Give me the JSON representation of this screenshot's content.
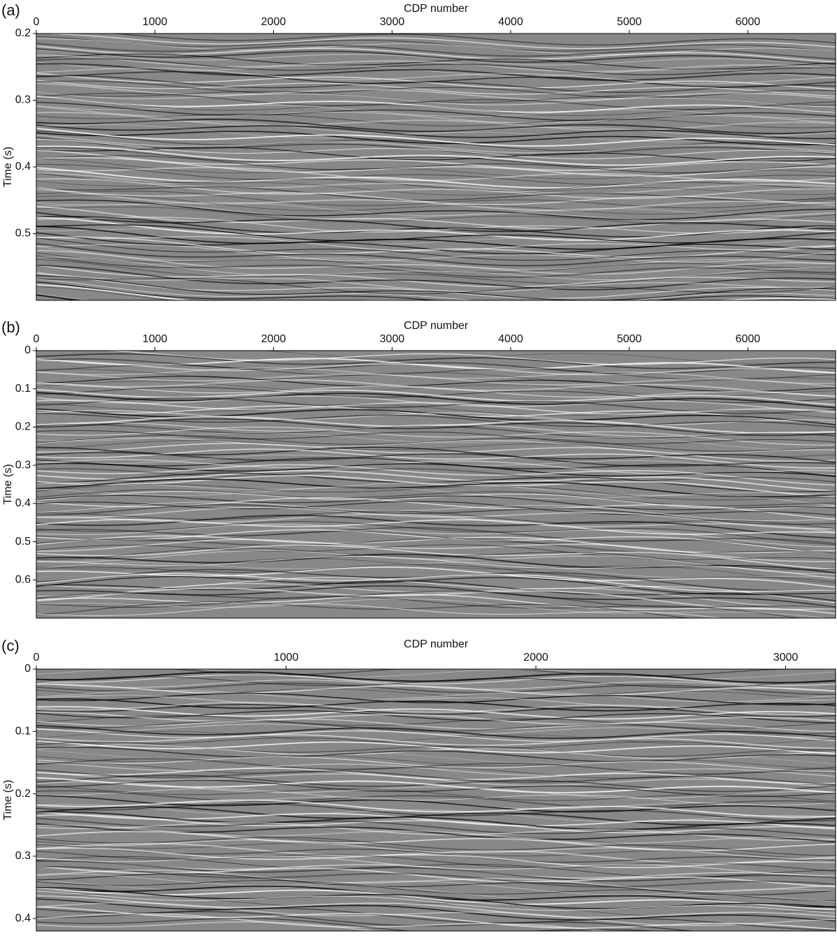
{
  "chart_data": [
    {
      "type": "image",
      "panel_label": "(a)",
      "x_label": "CDP number",
      "y_label": "Time (s)",
      "xlim": [
        0,
        6740
      ],
      "xticks": [
        0,
        1000,
        2000,
        3000,
        4000,
        5000,
        6000
      ],
      "ylim": [
        0.2,
        0.6
      ],
      "yticks": [
        0.2,
        0.3,
        0.4,
        0.5
      ],
      "y_inverted": true,
      "x_axis_position": "top",
      "color": "#888888"
    },
    {
      "type": "image",
      "panel_label": "(b)",
      "x_label": "CDP number",
      "y_label": "Time (s)",
      "xlim": [
        0,
        6740
      ],
      "xticks": [
        0,
        1000,
        2000,
        3000,
        4000,
        5000,
        6000
      ],
      "ylim": [
        0,
        0.7
      ],
      "yticks": [
        0,
        0.1,
        0.2,
        0.3,
        0.4,
        0.5,
        0.6
      ],
      "y_inverted": true,
      "x_axis_position": "top",
      "color": "#888888"
    },
    {
      "type": "image",
      "panel_label": "(c)",
      "x_label": "CDP number",
      "y_label": "Time (s)",
      "xlim": [
        0,
        3200
      ],
      "xticks": [
        0,
        1000,
        2000,
        3000
      ],
      "ylim": [
        0,
        0.42
      ],
      "yticks": [
        0,
        0.1,
        0.2,
        0.3,
        0.4
      ],
      "y_inverted": true,
      "x_axis_position": "top",
      "color": "#888888"
    }
  ]
}
